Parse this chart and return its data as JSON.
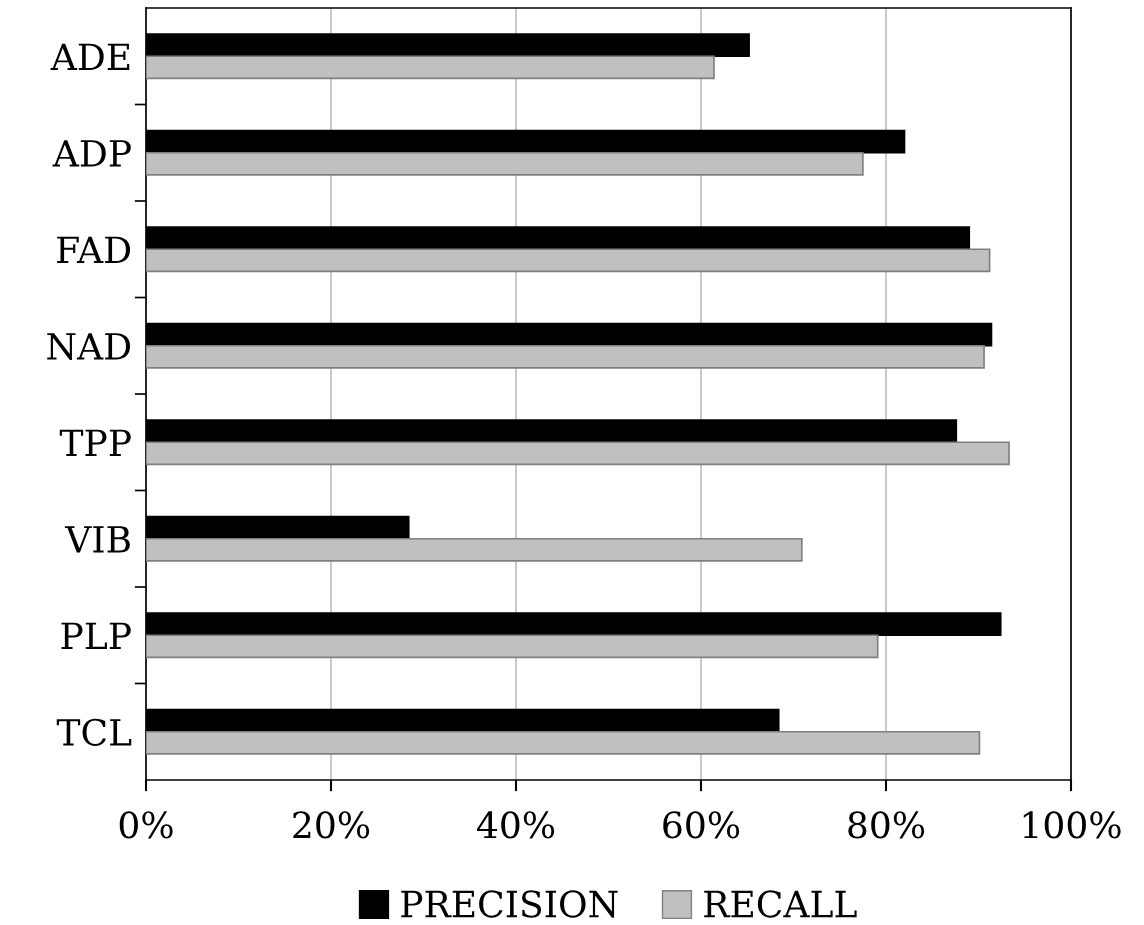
{
  "chart_data": {
    "type": "bar",
    "orientation": "horizontal",
    "categories": [
      "ADE",
      "ADP",
      "FAD",
      "NAD",
      "TPP",
      "VIB",
      "PLP",
      "TCL"
    ],
    "series": [
      {
        "name": "PRECISION",
        "color": "#000000",
        "values": [
          65.2,
          82.0,
          89.0,
          91.4,
          87.6,
          28.4,
          92.4,
          68.4
        ]
      },
      {
        "name": "RECALL",
        "color": "#c0c0c0",
        "values": [
          61.4,
          77.5,
          91.2,
          90.6,
          93.3,
          70.9,
          79.1,
          90.1
        ]
      }
    ],
    "xlim": [
      0,
      100
    ],
    "xticks": [
      {
        "value": 0,
        "label": "0%"
      },
      {
        "value": 20,
        "label": "20%"
      },
      {
        "value": 40,
        "label": "40%"
      },
      {
        "value": 60,
        "label": "60%"
      },
      {
        "value": 80,
        "label": "80%"
      },
      {
        "value": 100,
        "label": "100%"
      }
    ],
    "grid": "x",
    "legend": "bottom"
  }
}
